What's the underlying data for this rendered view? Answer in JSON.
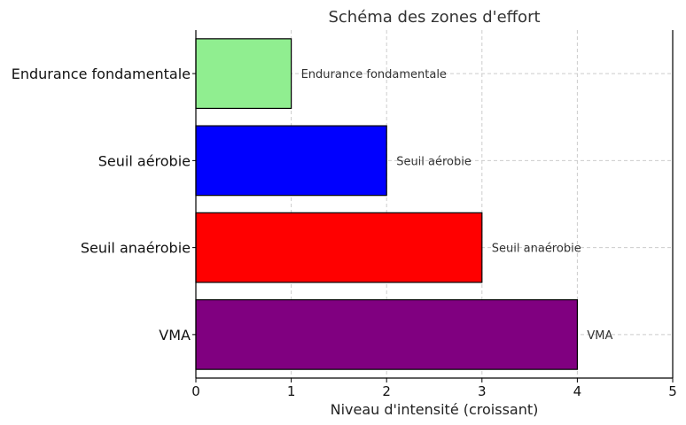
{
  "chart_data": {
    "type": "bar",
    "orientation": "horizontal",
    "title": "Schéma des zones d'effort",
    "xlabel": "Niveau d'intensité (croissant)",
    "ylabel": "",
    "xlim": [
      0,
      5
    ],
    "xticks": [
      "0",
      "1",
      "2",
      "3",
      "4",
      "5"
    ],
    "grid": true,
    "categories": [
      "Endurance fondamentale",
      "Seuil aérobie",
      "Seuil anaérobie",
      "VMA"
    ],
    "values": [
      1,
      2,
      3,
      4
    ],
    "colors": [
      "#90ee90",
      "#0000ff",
      "#ff0000",
      "#800080"
    ]
  }
}
